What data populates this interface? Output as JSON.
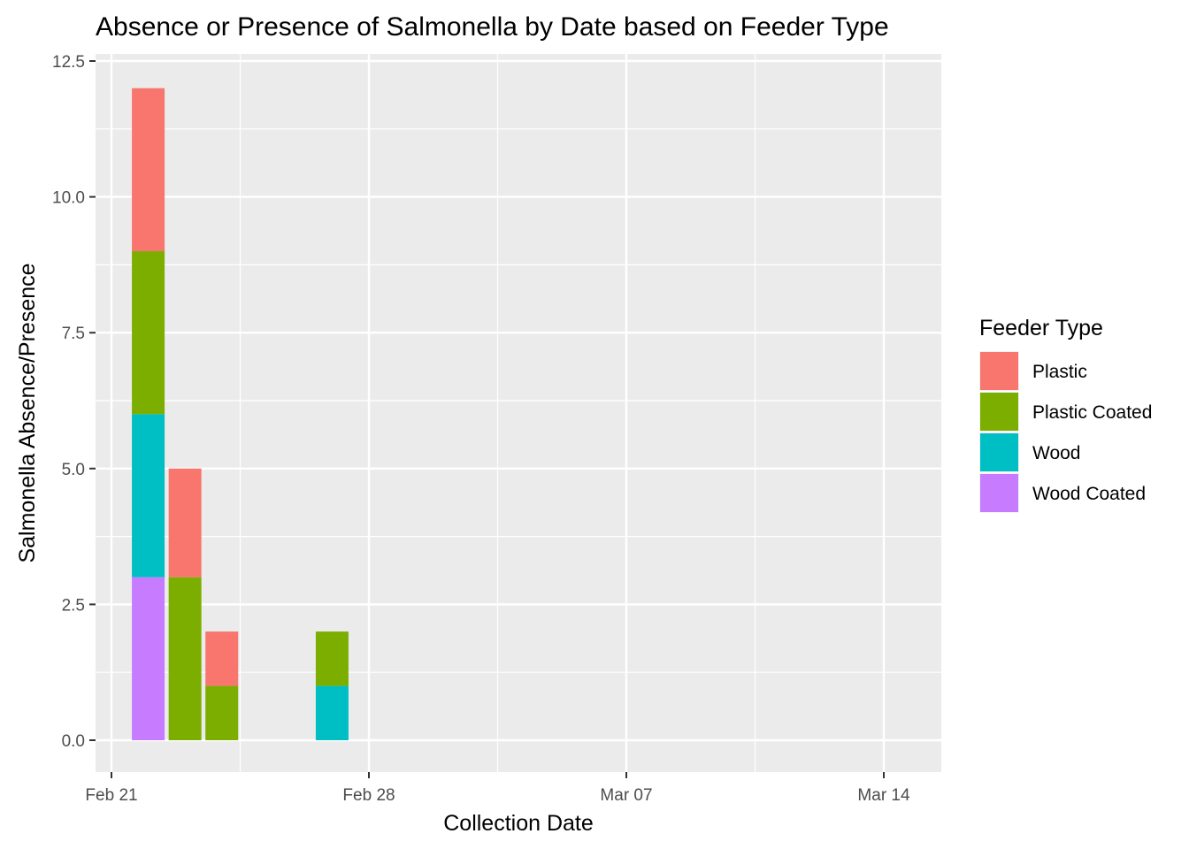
{
  "chart_data": {
    "type": "bar",
    "stacked": true,
    "title": "Absence or Presence of Salmonella by Date based on Feeder Type",
    "xlabel": "Collection Date",
    "ylabel": "Salmonella Absence/Presence",
    "x_tick_labels": [
      "Feb 21",
      "Feb 28",
      "Mar 07",
      "Mar 14"
    ],
    "x_ticks": [
      "2021-02-21",
      "2021-02-28",
      "2021-03-07",
      "2021-03-14"
    ],
    "xlim": [
      "2021-02-21",
      "2021-03-15"
    ],
    "y_tick_labels": [
      "0.0",
      "2.5",
      "5.0",
      "7.5",
      "10.0",
      "12.5"
    ],
    "y_ticks": [
      0,
      2.5,
      5,
      7.5,
      10,
      12.5
    ],
    "ylim": [
      0,
      12.5
    ],
    "grid": true,
    "legend": {
      "title": "Feeder Type",
      "position": "right"
    },
    "dates": [
      "2021-02-22",
      "2021-02-23",
      "2021-02-24",
      "2021-02-27"
    ],
    "series": [
      {
        "name": "Wood Coated",
        "color": "#C77CFF",
        "values": [
          3,
          0,
          0,
          0
        ]
      },
      {
        "name": "Wood",
        "color": "#00BFC4",
        "values": [
          3,
          0,
          0,
          1
        ]
      },
      {
        "name": "Plastic Coated",
        "color": "#7CAE00",
        "values": [
          3,
          3,
          1,
          1
        ]
      },
      {
        "name": "Plastic",
        "color": "#F8766D",
        "values": [
          3,
          2,
          1,
          0
        ]
      }
    ],
    "legend_order": [
      "Plastic",
      "Plastic Coated",
      "Wood",
      "Wood Coated"
    ]
  }
}
